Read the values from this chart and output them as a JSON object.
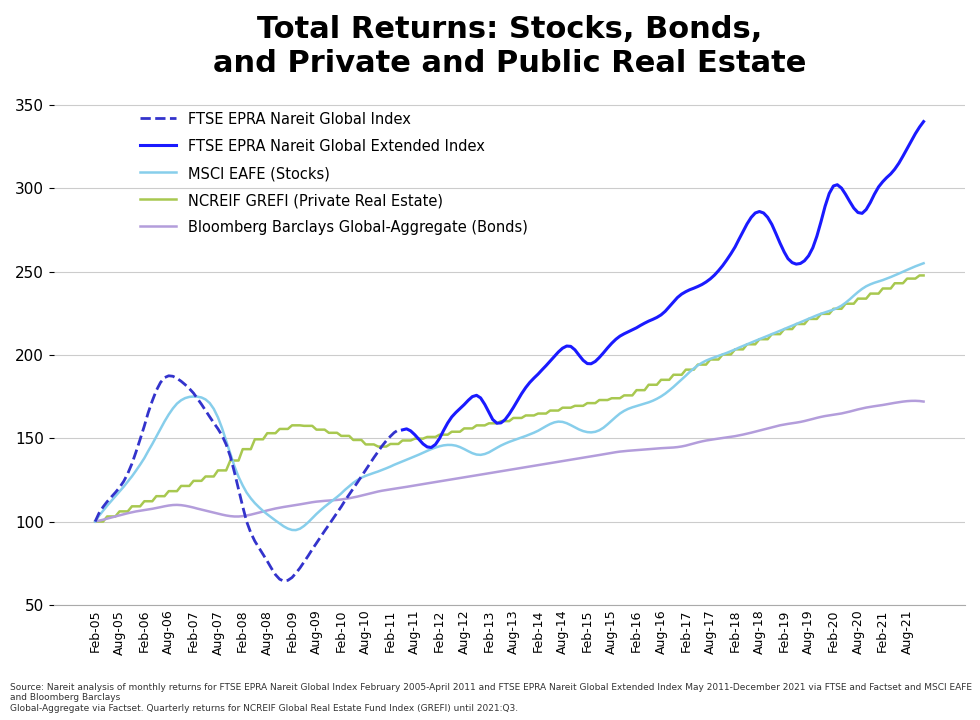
{
  "title": "Total Returns: Stocks, Bonds,\nand Private and Public Real Estate",
  "title_fontsize": 22,
  "source_text": "Source: Nareit analysis of monthly returns for FTSE EPRA Nareit Global Index February 2005-April 2011 and FTSE EPRA Nareit Global Extended Index May 2011-December 2021 via FTSE and Factset and MSCI EAFE and Bloomberg Barclays\nGlobal-Aggregate via Factset. Quarterly returns for NCREIF Global Real Estate Fund Index (GREFI) until 2021:Q3.",
  "ylim": [
    50,
    360
  ],
  "yticks": [
    50,
    100,
    150,
    200,
    250,
    300,
    350
  ],
  "legend_labels": [
    "FTSE EPRA Nareit Global Index",
    "FTSE EPRA Nareit Global Extended Index",
    "MSCI EAFE (Stocks)",
    "NCREIF GREFI (Private Real Estate)",
    "Bloomberg Barclays Global-Aggregate (Bonds)"
  ],
  "line_colors": [
    "#3333cc",
    "#1a1aff",
    "#87ceeb",
    "#a8c850",
    "#b39ddb"
  ],
  "line_styles": [
    "--",
    "-",
    "-",
    "-",
    "-"
  ],
  "line_widths": [
    2.0,
    2.2,
    1.8,
    1.8,
    1.8
  ]
}
